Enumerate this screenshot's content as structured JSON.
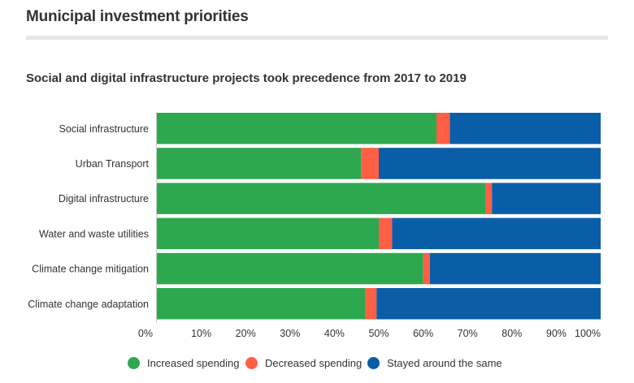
{
  "header": {
    "title": "Municipal investment priorities"
  },
  "chart_data": {
    "type": "bar",
    "orientation": "horizontal",
    "stacked": true,
    "subtitle": "Social and digital infrastructure projects took precedence from 2017 to 2019",
    "categories": [
      "Social infrastructure",
      "Urban Transport",
      "Digital infrastructure",
      "Water and waste utilities",
      "Climate change mitigation",
      "Climate change adaptation"
    ],
    "series": [
      {
        "name": "Increased spending",
        "color": "#2ea84f",
        "values": [
          63,
          46,
          74,
          50,
          60,
          47
        ]
      },
      {
        "name": "Decreased spending",
        "color": "#ff5f45",
        "values": [
          3,
          4,
          1.5,
          3,
          1.5,
          2.5
        ]
      },
      {
        "name": "Stayed around the same",
        "color": "#0a5ea8",
        "values": [
          34,
          50,
          24.5,
          47,
          38.5,
          50.5
        ]
      }
    ],
    "xlim": [
      0,
      100
    ],
    "xticks": [
      "0%",
      "10%",
      "20%",
      "30%",
      "40%",
      "50%",
      "60%",
      "70%",
      "80%",
      "90%",
      "100%"
    ],
    "legend_position": "bottom",
    "grid": false
  }
}
